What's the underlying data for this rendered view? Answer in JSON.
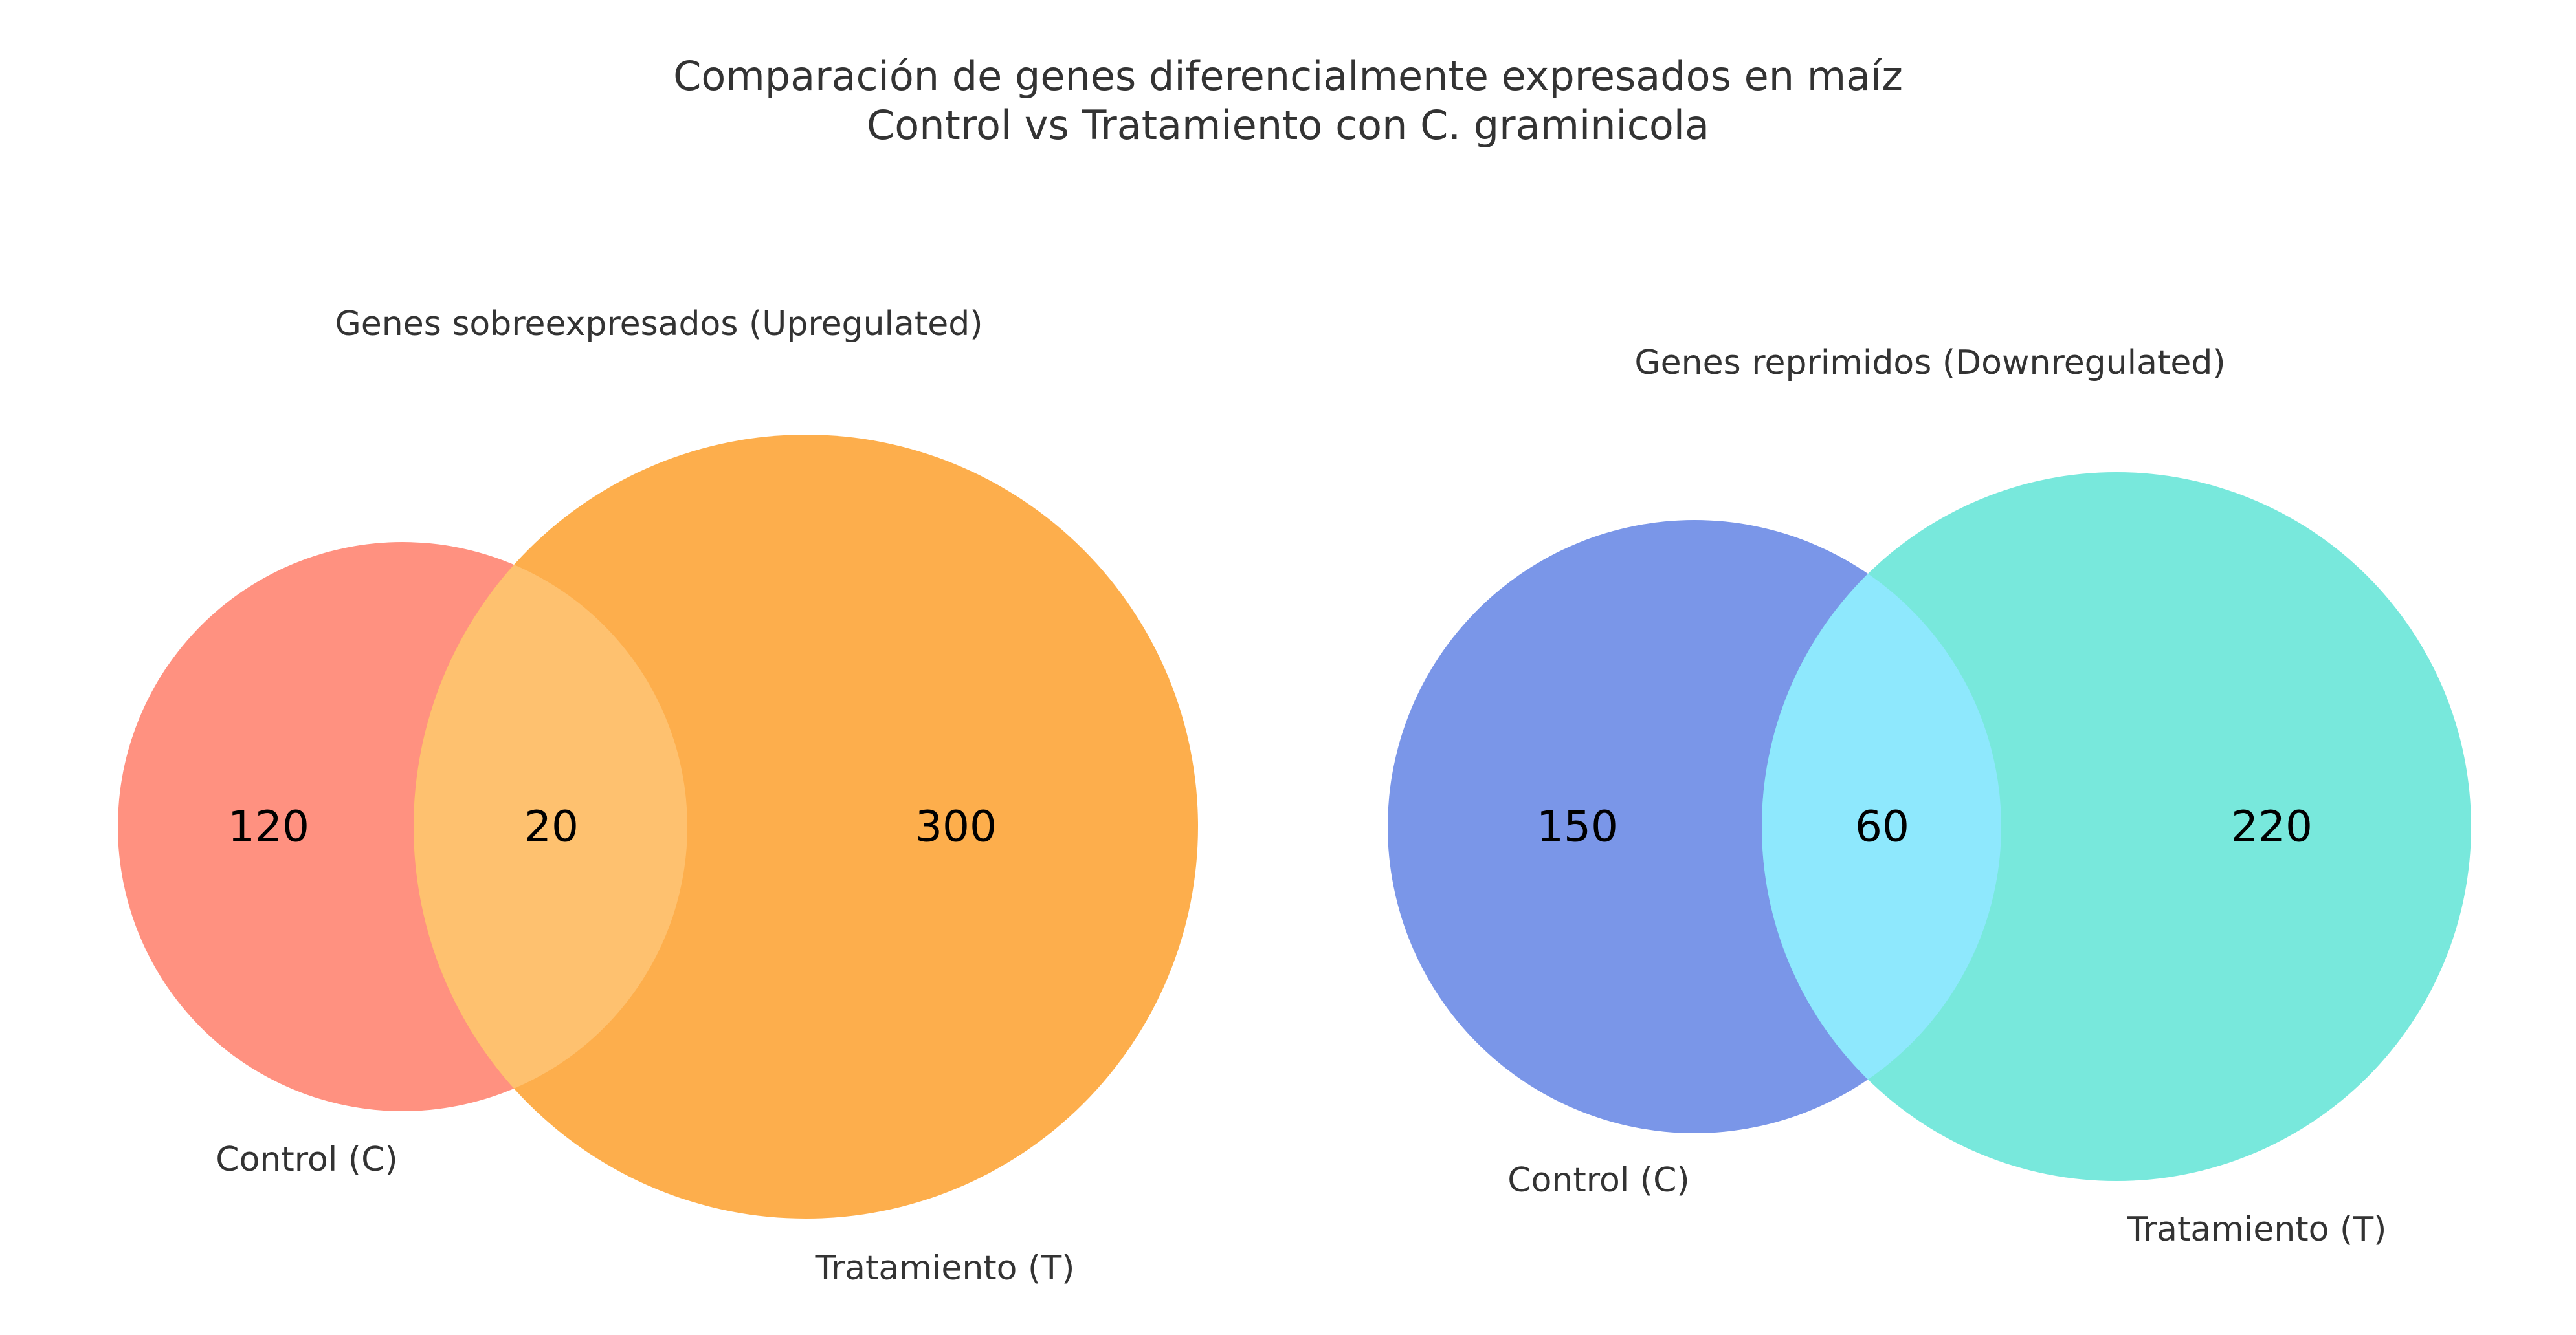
{
  "title": {
    "line1": "Comparación de genes diferencialmente expresados en maíz",
    "line2": "Control vs Tratamiento con C. graminicola"
  },
  "chart_data": [
    {
      "type": "venn",
      "title": "Genes sobreexpresados (Upregulated)",
      "sets": [
        {
          "label": "Control (C)",
          "only": 120,
          "color": "#FF9180"
        },
        {
          "label": "Tratamiento (T)",
          "only": 300,
          "color": "#FDAE4C"
        }
      ],
      "intersection": {
        "value": 20,
        "color": "#FEC16F"
      }
    },
    {
      "type": "venn",
      "title": "Genes reprimidos (Downregulated)",
      "sets": [
        {
          "label": "Control (C)",
          "only": 150,
          "color": "#7A96E8"
        },
        {
          "label": "Tratamiento (T)",
          "only": 220,
          "color": "#78E8DC"
        }
      ],
      "intersection": {
        "value": 60,
        "color": "#8EE8FD"
      }
    }
  ]
}
